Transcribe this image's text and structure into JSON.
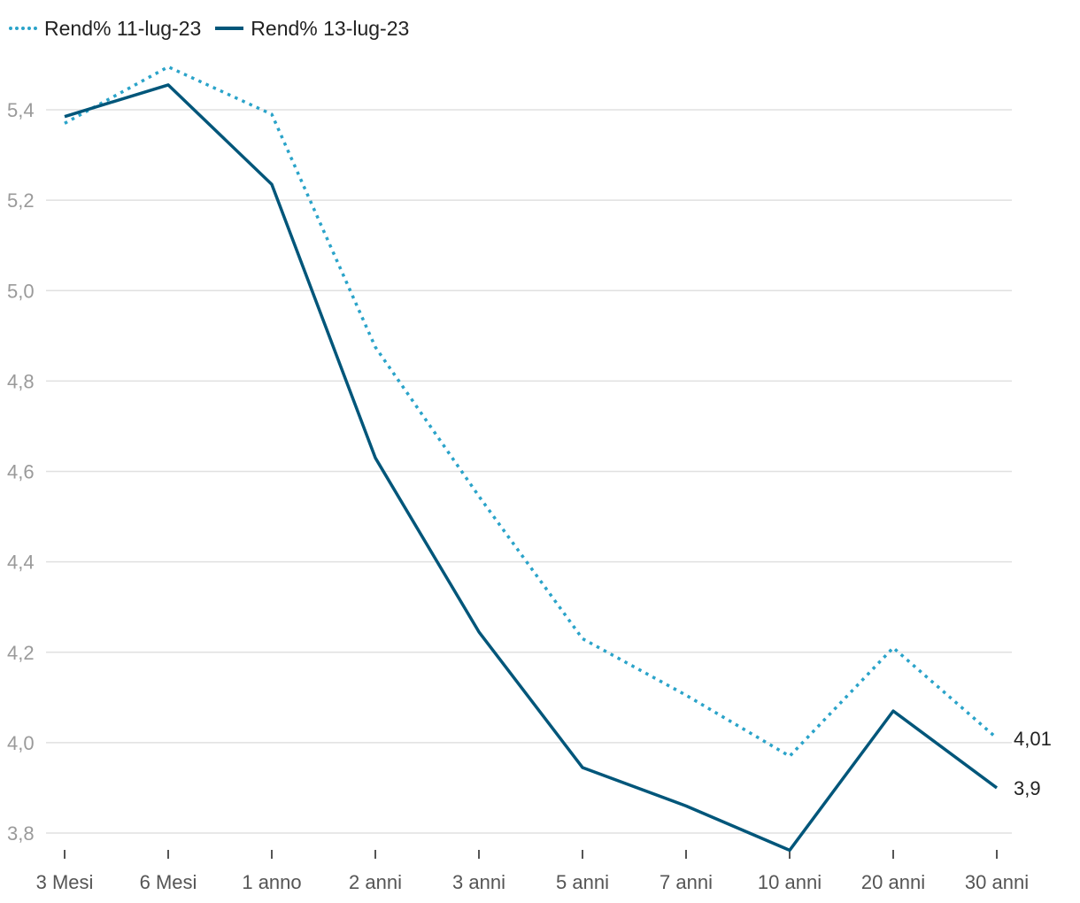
{
  "chart_data": {
    "type": "line",
    "title": "",
    "xlabel": "",
    "ylabel": "",
    "categories": [
      "3 Mesi",
      "6 Mesi",
      "1 anno",
      "2 anni",
      "3 anni",
      "5 anni",
      "7 anni",
      "10 anni",
      "20 anni",
      "30 anni"
    ],
    "series": [
      {
        "name": "Rend% 11-lug-23",
        "style": "dotted",
        "color": "#2aa3c9",
        "values": [
          5.37,
          5.495,
          5.39,
          4.875,
          4.545,
          4.23,
          4.105,
          3.97,
          4.21,
          4.01
        ]
      },
      {
        "name": "Rend% 13-lug-23",
        "style": "solid",
        "color": "#00567a",
        "values": [
          5.385,
          5.455,
          5.235,
          4.63,
          4.245,
          3.945,
          3.86,
          3.762,
          4.07,
          3.9
        ]
      }
    ],
    "end_labels": [
      "4,01",
      "3,9"
    ],
    "yticks": [
      "3,8",
      "4,0",
      "4,2",
      "4,4",
      "4,6",
      "4,8",
      "5,0",
      "5,2",
      "5,4"
    ],
    "ytick_values": [
      3.8,
      4.0,
      4.2,
      4.4,
      4.6,
      4.8,
      5.0,
      5.2,
      5.4
    ],
    "ylim": [
      3.8,
      5.4
    ],
    "grid": true,
    "legend_position": "top-left"
  }
}
